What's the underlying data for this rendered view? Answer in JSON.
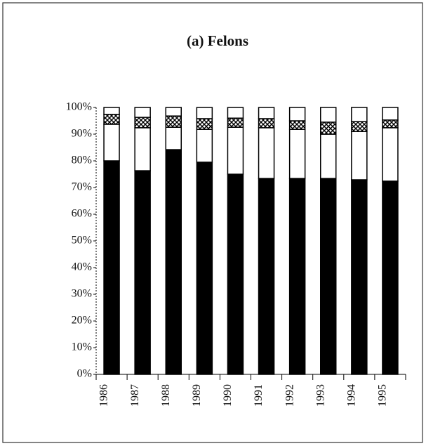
{
  "chart_data": {
    "type": "stacked_bar",
    "title": "(a) Felons",
    "categories": [
      "1986",
      "1987",
      "1988",
      "1989",
      "1990",
      "1991",
      "1992",
      "1993",
      "1994",
      "1995"
    ],
    "series": [
      {
        "color": "#000000",
        "values": [
          80,
          76.3,
          84.2,
          79.5,
          75,
          73.4,
          73.4,
          73.4,
          72.9,
          72.4
        ]
      },
      {
        "color": "#ffffff",
        "values": [
          13.7,
          16.1,
          8.4,
          12.3,
          17.6,
          19,
          18.4,
          16.6,
          18.1,
          20
        ]
      },
      {
        "color": "#ffffff",
        "pattern": "cross",
        "values": [
          3.7,
          3.9,
          4.2,
          4,
          3.4,
          3.4,
          3.2,
          4.5,
          3.7,
          2.9
        ]
      },
      {
        "color": "#ffffff",
        "values": [
          2.6,
          3.7,
          3.2,
          4.2,
          4,
          4.2,
          5,
          5.5,
          5.3,
          4.7
        ]
      }
    ],
    "ylim": [
      0,
      100
    ],
    "yticks": [
      {
        "value": 0,
        "label": "0%"
      },
      {
        "value": 10,
        "label": "10%"
      },
      {
        "value": 20,
        "label": "20%"
      },
      {
        "value": 30,
        "label": "30%"
      },
      {
        "value": 40,
        "label": "40%"
      },
      {
        "value": 50,
        "label": "50%"
      },
      {
        "value": 60,
        "label": "60%"
      },
      {
        "value": 70,
        "label": "70%"
      },
      {
        "value": 80,
        "label": "80%"
      },
      {
        "value": 90,
        "label": "90%"
      },
      {
        "value": 100,
        "label": "100%"
      }
    ],
    "grid": false
  }
}
